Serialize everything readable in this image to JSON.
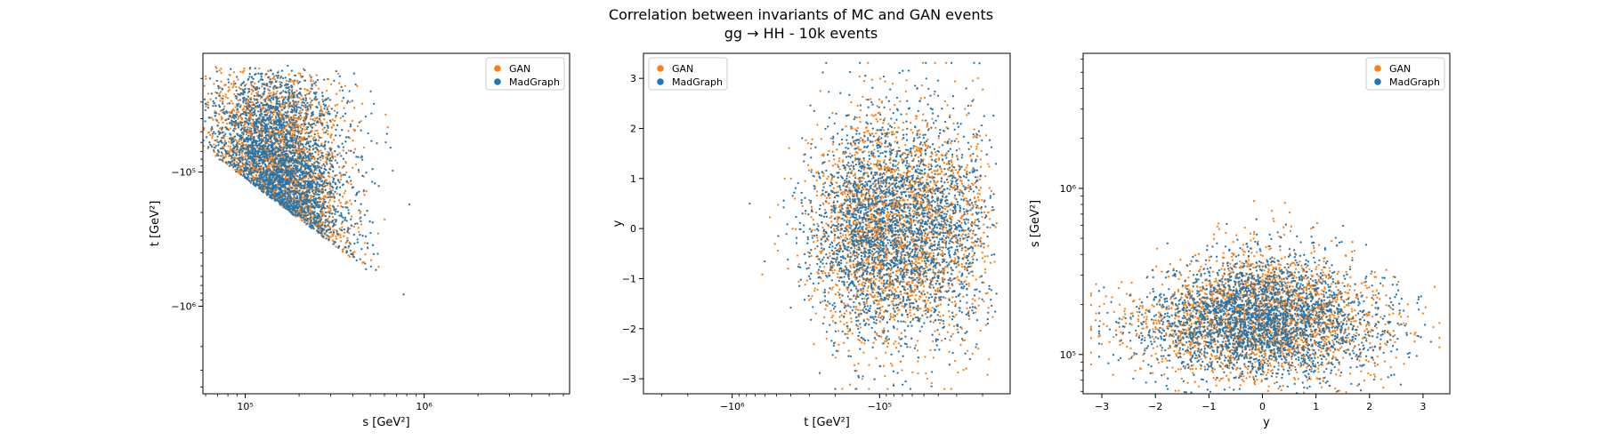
{
  "figure": {
    "title_line1": "Correlation between invariants of MC and GAN events",
    "title_line2": "gg → HH - 10k events"
  },
  "colors": {
    "gan": "#ff7f0e",
    "madgraph": "#1f77b4"
  },
  "chart_data": [
    {
      "type": "scatter",
      "xlabel": "s [GeV²]",
      "ylabel": "t [GeV²]",
      "xscale": "log",
      "yscale": "symlog-negative",
      "xlim": [
        58000,
        6500000
      ],
      "ylim": [
        -4500000,
        -13000
      ],
      "xticks": [
        {
          "value": 100000,
          "label": "10⁵"
        },
        {
          "value": 1000000,
          "label": "10⁶"
        }
      ],
      "yticks": [
        {
          "value": -100000,
          "label": "−10⁵"
        },
        {
          "value": -1000000,
          "label": "−10⁶"
        }
      ],
      "legend": {
        "position": "upper-right",
        "entries": [
          "GAN",
          "MadGraph"
        ]
      },
      "series": [
        {
          "name": "GAN",
          "color": "#ff7f0e",
          "count": 10000
        },
        {
          "name": "MadGraph",
          "color": "#1f77b4",
          "count": 10000
        }
      ]
    },
    {
      "type": "scatter",
      "xlabel": "t [GeV²]",
      "ylabel": "y",
      "xscale": "symlog-negative",
      "yscale": "linear",
      "xlim": [
        -4000000,
        -13000
      ],
      "ylim": [
        -3.3,
        3.5
      ],
      "xticks": [
        {
          "value": -1000000,
          "label": "−10⁶"
        },
        {
          "value": -100000,
          "label": "−10⁵"
        }
      ],
      "yticks": [
        {
          "value": -3,
          "label": "−3"
        },
        {
          "value": -2,
          "label": "−2"
        },
        {
          "value": -1,
          "label": "−1"
        },
        {
          "value": 0,
          "label": "0"
        },
        {
          "value": 1,
          "label": "1"
        },
        {
          "value": 2,
          "label": "2"
        },
        {
          "value": 3,
          "label": "3"
        }
      ],
      "legend": {
        "position": "upper-left",
        "entries": [
          "GAN",
          "MadGraph"
        ]
      },
      "series": [
        {
          "name": "GAN",
          "color": "#ff7f0e",
          "count": 10000
        },
        {
          "name": "MadGraph",
          "color": "#1f77b4",
          "count": 10000
        }
      ]
    },
    {
      "type": "scatter",
      "xlabel": "y",
      "ylabel": "s [GeV²]",
      "xscale": "linear",
      "yscale": "log",
      "xlim": [
        -3.35,
        3.5
      ],
      "ylim": [
        58000,
        6500000
      ],
      "xticks": [
        {
          "value": -3,
          "label": "−3"
        },
        {
          "value": -2,
          "label": "−2"
        },
        {
          "value": -1,
          "label": "−1"
        },
        {
          "value": 0,
          "label": "0"
        },
        {
          "value": 1,
          "label": "1"
        },
        {
          "value": 2,
          "label": "2"
        },
        {
          "value": 3,
          "label": "3"
        }
      ],
      "yticks": [
        {
          "value": 100000,
          "label": "10⁵"
        },
        {
          "value": 1000000,
          "label": "10⁶"
        }
      ],
      "legend": {
        "position": "upper-right",
        "entries": [
          "GAN",
          "MadGraph"
        ]
      },
      "series": [
        {
          "name": "GAN",
          "color": "#ff7f0e",
          "count": 10000
        },
        {
          "name": "MadGraph",
          "color": "#1f77b4",
          "count": 10000
        }
      ]
    }
  ]
}
